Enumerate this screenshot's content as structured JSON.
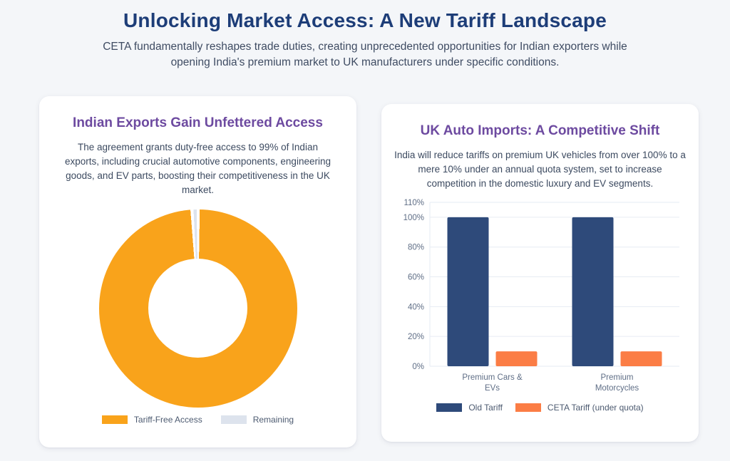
{
  "page": {
    "title": "Unlocking Market Access: A New Tariff Landscape",
    "subtitle": "CETA fundamentally reshapes trade duties, creating unprecedented opportunities for Indian exporters while opening India's premium market to UK manufacturers under specific conditions."
  },
  "cards": [
    {
      "title": "Indian Exports Gain Unfettered Access",
      "description": "The agreement grants duty-free access to 99% of Indian exports, including crucial automotive components, engineering goods, and EV parts, boosting their competitiveness in the UK market."
    },
    {
      "title": "UK Auto Imports: A Competitive Shift",
      "description": "India will reduce tariffs on premium UK vehicles from over 100% to a mere 10% under an annual quota system, set to increase competition in the domestic luxury and EV segments."
    }
  ],
  "colors": {
    "page_background": "#f4f6f9",
    "card_background": "#ffffff",
    "title_navy": "#1d3d78",
    "heading_purple": "#6d4aa0",
    "body_text": "#3c4a60",
    "axis_text": "#5f6e86",
    "grid_line": "#e6ebf3",
    "donut_orange": "#f9a31b",
    "donut_gray": "#dde3ed",
    "bar_navy": "#2e4a7a",
    "bar_orange": "#fb7d45"
  },
  "chart_data": [
    {
      "type": "pie",
      "subtype": "doughnut",
      "title": "Indian Exports Gain Unfettered Access",
      "labels": [
        "Tariff-Free Access",
        "Remaining"
      ],
      "values": [
        99,
        1
      ],
      "colors": [
        "#f9a31b",
        "#dde3ed"
      ],
      "cutout_percent": 50,
      "legend_position": "bottom",
      "border_color": "#ffffff"
    },
    {
      "type": "bar",
      "title": "UK Auto Imports: A Competitive Shift",
      "categories": [
        "Premium Cars & EVs",
        "Premium Motorcycles"
      ],
      "category_lines": [
        [
          "Premium Cars &",
          "EVs"
        ],
        [
          "Premium",
          "Motorcycles"
        ]
      ],
      "series": [
        {
          "name": "Old Tariff",
          "values": [
            100,
            100
          ],
          "color": "#2e4a7a"
        },
        {
          "name": "CETA Tariff (under quota)",
          "values": [
            10,
            10
          ],
          "color": "#fb7d45"
        }
      ],
      "ylim": [
        0,
        110
      ],
      "yticks": [
        0,
        20,
        40,
        60,
        80,
        100,
        110
      ],
      "ytick_suffix": "%",
      "grid": true,
      "legend_position": "bottom"
    }
  ]
}
